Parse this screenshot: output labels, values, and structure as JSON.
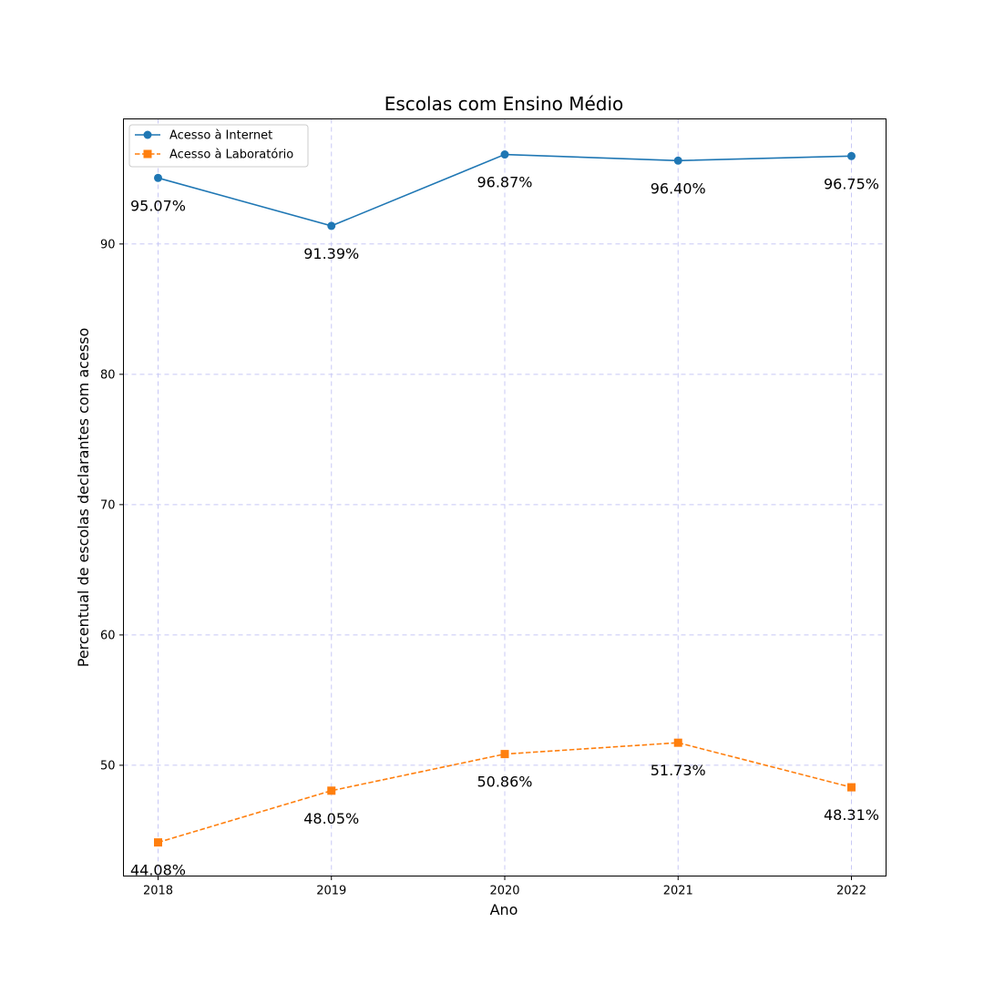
{
  "chart_data": {
    "type": "line",
    "title": "Escolas com Ensino Médio",
    "xlabel": "Ano",
    "ylabel": "Percentual de escolas declarantes com acesso",
    "x": [
      "2018",
      "2019",
      "2020",
      "2021",
      "2022"
    ],
    "ylim": [
      41.5,
      99.6
    ],
    "yticks": [
      50,
      60,
      70,
      80,
      90
    ],
    "grid": true,
    "legend_position": "top-left",
    "series": [
      {
        "name": "Acesso à Internet",
        "values": [
          95.07,
          91.39,
          96.87,
          96.4,
          96.75
        ],
        "labels": [
          "95.07%",
          "91.39%",
          "96.87%",
          "96.40%",
          "96.75%"
        ],
        "color": "#1f77b4",
        "marker": "circle",
        "linestyle": "solid"
      },
      {
        "name": "Acesso à Laboratório",
        "values": [
          44.08,
          48.05,
          50.86,
          51.73,
          48.31
        ],
        "labels": [
          "44.08%",
          "48.05%",
          "50.86%",
          "51.73%",
          "48.31%"
        ],
        "color": "#ff7f0e",
        "marker": "square",
        "linestyle": "dashed"
      }
    ]
  }
}
